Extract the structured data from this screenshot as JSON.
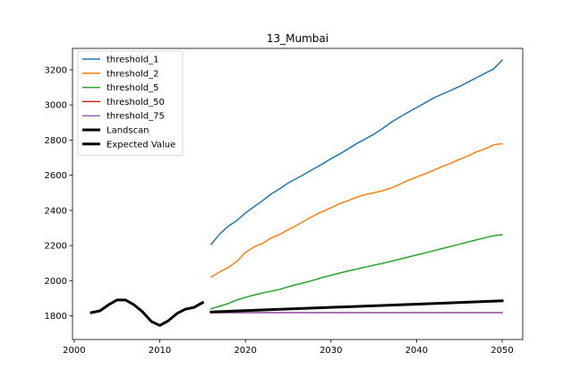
{
  "chart_data": {
    "type": "line",
    "title": "13_Mumbai",
    "xlabel": "",
    "ylabel": "",
    "xlim": [
      1999.8,
      2052.4
    ],
    "ylim": [
      1665,
      3322
    ],
    "xticks": [
      2000,
      2010,
      2020,
      2030,
      2040,
      2050
    ],
    "yticks": [
      1800,
      2000,
      2200,
      2400,
      2600,
      2800,
      3000,
      3200
    ],
    "grid": false,
    "legend_position": "top-left",
    "series": [
      {
        "name": "threshold_1",
        "color": "#1f77b4",
        "x": [
          2016,
          2017,
          2018,
          2019,
          2020,
          2021,
          2022,
          2023,
          2024,
          2025,
          2026,
          2027,
          2028,
          2029,
          2030,
          2031,
          2032,
          2033,
          2034,
          2035,
          2036,
          2037,
          2038,
          2039,
          2040,
          2041,
          2042,
          2043,
          2044,
          2045,
          2046,
          2047,
          2048,
          2049,
          2050
        ],
        "y": [
          2207,
          2265,
          2310,
          2342,
          2385,
          2420,
          2455,
          2493,
          2523,
          2556,
          2582,
          2609,
          2637,
          2664,
          2694,
          2720,
          2750,
          2780,
          2806,
          2833,
          2865,
          2900,
          2930,
          2958,
          2985,
          3012,
          3040,
          3062,
          3083,
          3105,
          3130,
          3155,
          3180,
          3205,
          3255
        ]
      },
      {
        "name": "threshold_2",
        "color": "#ff7f0e",
        "x": [
          2016,
          2017,
          2018,
          2019,
          2020,
          2021,
          2022,
          2023,
          2024,
          2025,
          2026,
          2027,
          2028,
          2029,
          2030,
          2031,
          2032,
          2033,
          2034,
          2035,
          2036,
          2037,
          2038,
          2039,
          2040,
          2041,
          2042,
          2043,
          2044,
          2045,
          2046,
          2047,
          2048,
          2049,
          2050
        ],
        "y": [
          2020,
          2050,
          2075,
          2110,
          2160,
          2192,
          2212,
          2243,
          2263,
          2290,
          2315,
          2343,
          2370,
          2393,
          2415,
          2438,
          2455,
          2475,
          2490,
          2500,
          2512,
          2527,
          2548,
          2570,
          2590,
          2608,
          2628,
          2650,
          2668,
          2690,
          2710,
          2733,
          2750,
          2773,
          2780
        ]
      },
      {
        "name": "threshold_5",
        "color": "#2ca02c",
        "x": [
          2016,
          2017,
          2018,
          2019,
          2020,
          2021,
          2022,
          2023,
          2024,
          2025,
          2026,
          2027,
          2028,
          2029,
          2030,
          2031,
          2032,
          2033,
          2034,
          2035,
          2036,
          2037,
          2038,
          2039,
          2040,
          2041,
          2042,
          2043,
          2044,
          2045,
          2046,
          2047,
          2048,
          2049,
          2050
        ],
        "y": [
          1840,
          1855,
          1870,
          1890,
          1905,
          1918,
          1930,
          1940,
          1950,
          1965,
          1978,
          1990,
          2003,
          2018,
          2030,
          2043,
          2055,
          2066,
          2077,
          2088,
          2098,
          2110,
          2122,
          2134,
          2146,
          2158,
          2170,
          2183,
          2195,
          2207,
          2220,
          2232,
          2244,
          2256,
          2262
        ]
      },
      {
        "name": "threshold_50",
        "color": "#d62728",
        "x": [
          2016,
          2050
        ],
        "y": [
          1818,
          1818
        ]
      },
      {
        "name": "threshold_75",
        "color": "#9467bd",
        "x": [
          2016,
          2050
        ],
        "y": [
          1818,
          1818
        ]
      },
      {
        "name": "Landscan",
        "color": "#000000",
        "x": [
          2002,
          2003,
          2004,
          2005,
          2006,
          2007,
          2008,
          2009,
          2010,
          2011,
          2012,
          2013,
          2014,
          2015
        ],
        "y": [
          1818,
          1828,
          1862,
          1890,
          1890,
          1862,
          1822,
          1768,
          1745,
          1772,
          1813,
          1838,
          1848,
          1875
        ]
      },
      {
        "name": "Expected Value",
        "color": "#000000",
        "x": [
          2016,
          2050
        ],
        "y": [
          1822,
          1885
        ]
      }
    ]
  }
}
